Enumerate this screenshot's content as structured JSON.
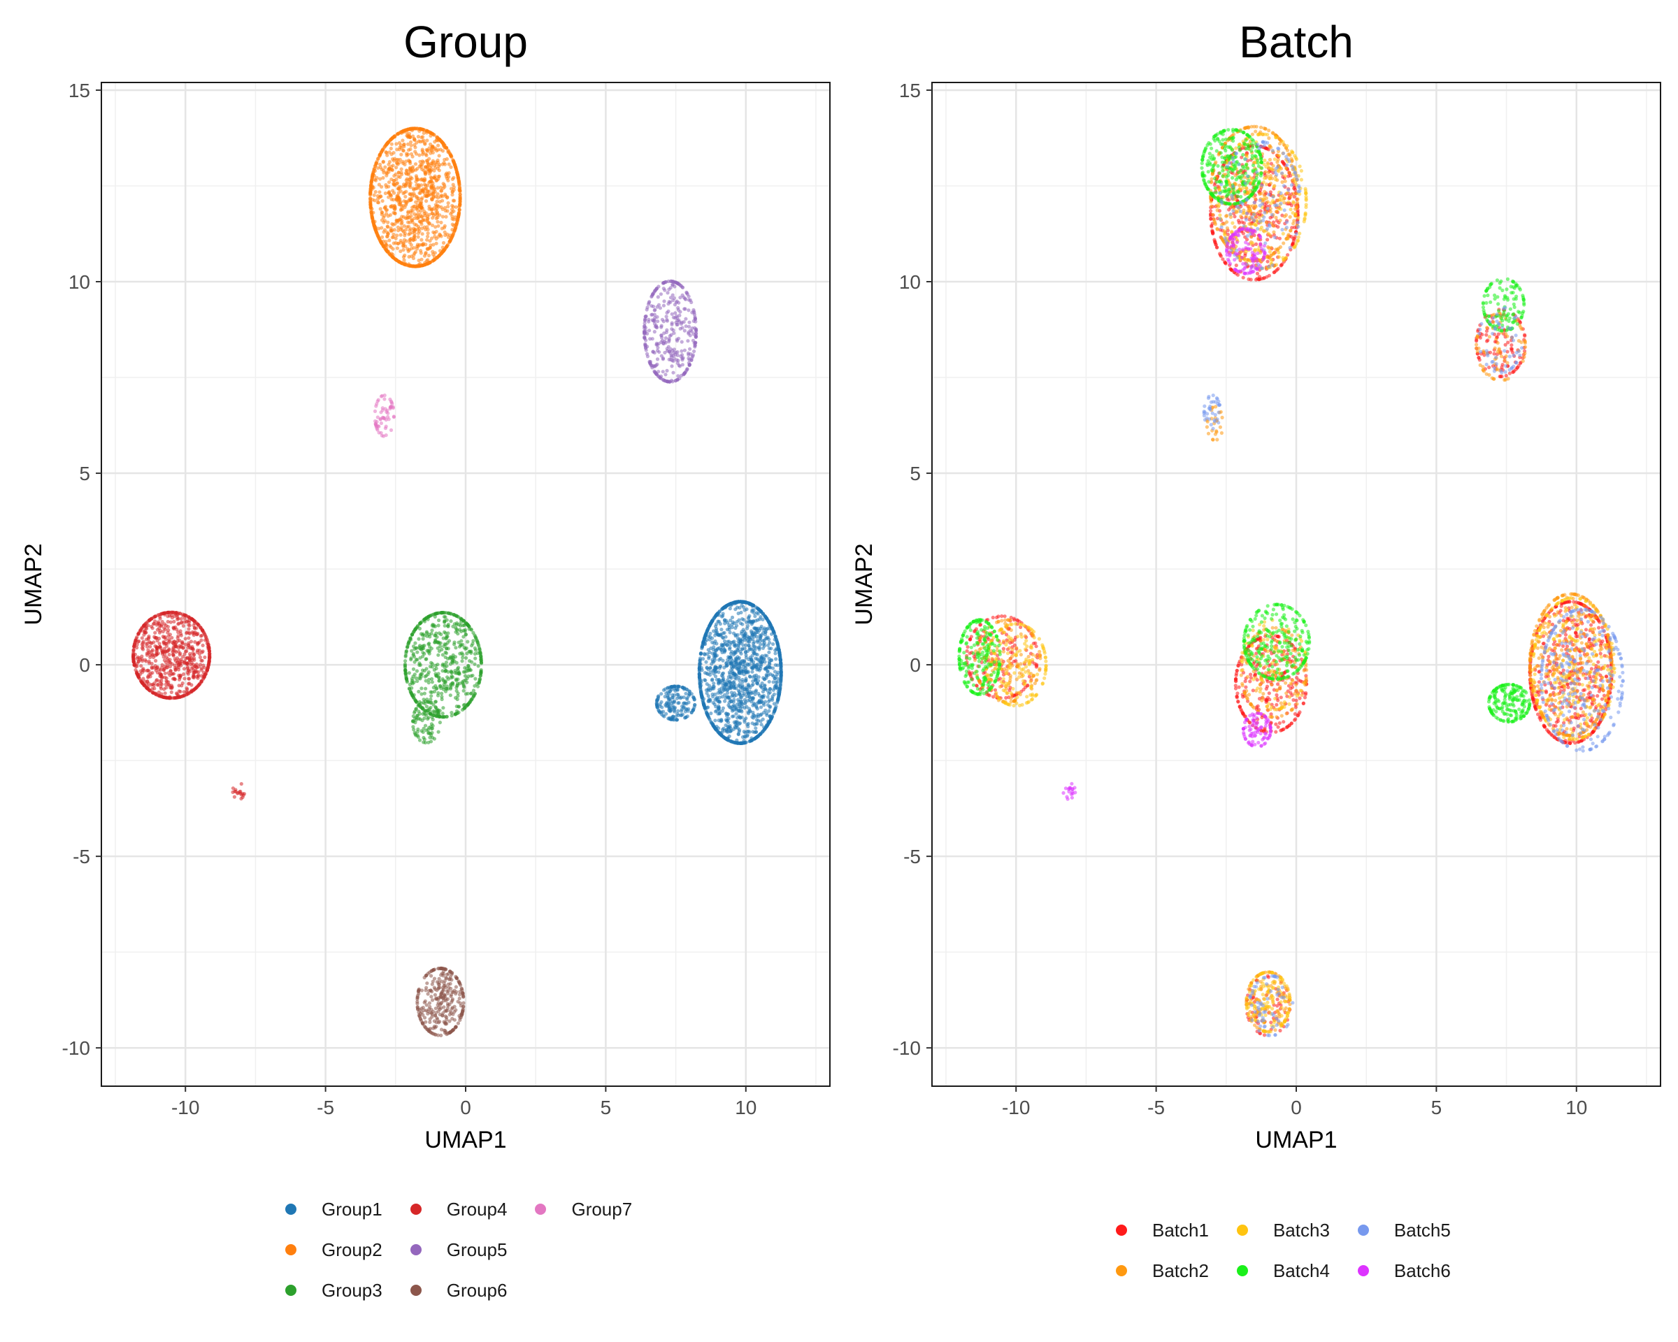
{
  "chart_data": [
    {
      "type": "scatter",
      "title": "Group",
      "xlabel": "UMAP1",
      "ylabel": "UMAP2",
      "xlim": [
        -13,
        13
      ],
      "ylim": [
        -11,
        15.2
      ],
      "xticks": [
        -10,
        -5,
        0,
        5,
        10
      ],
      "yticks": [
        15,
        10,
        5,
        0,
        -5,
        -10
      ],
      "grid": true,
      "legend_position": "bottom",
      "legend_rows": 3,
      "series": [
        {
          "name": "Group1",
          "color": "#1F77B4",
          "clusters": [
            {
              "cx": 9.8,
              "cy": -0.2,
              "sx": 1.5,
              "sy": 1.9,
              "n": 1600
            },
            {
              "cx": 7.5,
              "cy": -1.0,
              "sx": 0.7,
              "sy": 0.45,
              "n": 180
            }
          ]
        },
        {
          "name": "Group2",
          "color": "#FF7F0E",
          "clusters": [
            {
              "cx": -1.8,
              "cy": 12.2,
              "sx": 1.65,
              "sy": 1.85,
              "n": 1400
            }
          ]
        },
        {
          "name": "Group3",
          "color": "#2CA02C",
          "clusters": [
            {
              "cx": -0.8,
              "cy": 0.0,
              "sx": 1.4,
              "sy": 1.4,
              "n": 650
            },
            {
              "cx": -1.4,
              "cy": -1.5,
              "sx": 0.5,
              "sy": 0.55,
              "n": 90
            }
          ]
        },
        {
          "name": "Group4",
          "color": "#D62728",
          "clusters": [
            {
              "cx": -10.5,
              "cy": 0.25,
              "sx": 1.4,
              "sy": 1.15,
              "n": 850
            },
            {
              "cx": -8.1,
              "cy": -3.3,
              "sx": 0.22,
              "sy": 0.22,
              "n": 18
            }
          ]
        },
        {
          "name": "Group5",
          "color": "#9467BD",
          "clusters": [
            {
              "cx": 7.3,
              "cy": 8.7,
              "sx": 0.95,
              "sy": 1.35,
              "n": 380
            }
          ]
        },
        {
          "name": "Group6",
          "color": "#8C564B",
          "clusters": [
            {
              "cx": -0.9,
              "cy": -8.8,
              "sx": 0.85,
              "sy": 0.9,
              "n": 320
            }
          ]
        },
        {
          "name": "Group7",
          "color": "#E377C2",
          "clusters": [
            {
              "cx": -2.9,
              "cy": 6.5,
              "sx": 0.35,
              "sy": 0.55,
              "n": 60
            }
          ]
        }
      ]
    },
    {
      "type": "scatter",
      "title": "Batch",
      "xlabel": "UMAP1",
      "ylabel": "UMAP2",
      "xlim": [
        -13,
        13
      ],
      "ylim": [
        -11,
        15.2
      ],
      "xticks": [
        -10,
        -5,
        0,
        5,
        10
      ],
      "yticks": [
        15,
        10,
        5,
        0,
        -5,
        -10
      ],
      "grid": true,
      "legend_position": "bottom",
      "legend_rows": 2,
      "series": [
        {
          "name": "Batch1",
          "color": "#FF1A1A",
          "clusters": [
            {
              "cx": 9.8,
              "cy": -0.2,
              "sx": 1.5,
              "sy": 1.9,
              "n": 520
            },
            {
              "cx": -1.5,
              "cy": 11.8,
              "sx": 1.6,
              "sy": 1.8,
              "n": 420
            },
            {
              "cx": -0.9,
              "cy": -0.5,
              "sx": 1.3,
              "sy": 1.3,
              "n": 280
            },
            {
              "cx": -10.5,
              "cy": 0.2,
              "sx": 1.3,
              "sy": 1.1,
              "n": 170
            },
            {
              "cx": 7.3,
              "cy": 8.4,
              "sx": 0.9,
              "sy": 0.9,
              "n": 110
            },
            {
              "cx": -1.0,
              "cy": -8.9,
              "sx": 0.8,
              "sy": 0.8,
              "n": 60
            }
          ]
        },
        {
          "name": "Batch2",
          "color": "#FF9910",
          "clusters": [
            {
              "cx": 9.8,
              "cy": 0.0,
              "sx": 1.5,
              "sy": 1.9,
              "n": 380
            },
            {
              "cx": -1.5,
              "cy": 12.3,
              "sx": 1.6,
              "sy": 1.8,
              "n": 380
            },
            {
              "cx": -10.3,
              "cy": 0.1,
              "sx": 1.2,
              "sy": 1.1,
              "n": 140
            },
            {
              "cx": -0.8,
              "cy": -0.2,
              "sx": 1.2,
              "sy": 1.2,
              "n": 140
            },
            {
              "cx": 7.3,
              "cy": 8.3,
              "sx": 0.9,
              "sy": 0.9,
              "n": 70
            },
            {
              "cx": -1.0,
              "cy": -8.8,
              "sx": 0.8,
              "sy": 0.8,
              "n": 110
            },
            {
              "cx": -2.9,
              "cy": 6.3,
              "sx": 0.3,
              "sy": 0.45,
              "n": 25
            }
          ]
        },
        {
          "name": "Batch3",
          "color": "#FFC410",
          "clusters": [
            {
              "cx": 9.9,
              "cy": -0.1,
              "sx": 1.5,
              "sy": 1.9,
              "n": 240
            },
            {
              "cx": -1.2,
              "cy": 12.1,
              "sx": 1.6,
              "sy": 1.8,
              "n": 230
            },
            {
              "cx": -10.0,
              "cy": 0.0,
              "sx": 1.1,
              "sy": 1.1,
              "n": 160
            },
            {
              "cx": -1.0,
              "cy": -8.8,
              "sx": 0.8,
              "sy": 0.8,
              "n": 120
            },
            {
              "cx": -0.8,
              "cy": 0.0,
              "sx": 1.2,
              "sy": 1.2,
              "n": 70
            }
          ]
        },
        {
          "name": "Batch4",
          "color": "#1AF01A",
          "clusters": [
            {
              "cx": -2.3,
              "cy": 13.0,
              "sx": 1.1,
              "sy": 1.0,
              "n": 320
            },
            {
              "cx": -0.7,
              "cy": 0.6,
              "sx": 1.2,
              "sy": 1.0,
              "n": 260
            },
            {
              "cx": -11.3,
              "cy": 0.2,
              "sx": 0.75,
              "sy": 1.0,
              "n": 220
            },
            {
              "cx": 7.6,
              "cy": -1.0,
              "sx": 0.75,
              "sy": 0.5,
              "n": 190
            },
            {
              "cx": 7.4,
              "cy": 9.4,
              "sx": 0.75,
              "sy": 0.7,
              "n": 120
            }
          ]
        },
        {
          "name": "Batch5",
          "color": "#7799EE",
          "clusters": [
            {
              "cx": 10.2,
              "cy": -0.4,
              "sx": 1.5,
              "sy": 1.9,
              "n": 260
            },
            {
              "cx": -1.3,
              "cy": 12.0,
              "sx": 1.5,
              "sy": 1.7,
              "n": 120
            },
            {
              "cx": -0.9,
              "cy": -8.9,
              "sx": 0.8,
              "sy": 0.8,
              "n": 60
            },
            {
              "cx": -3.0,
              "cy": 6.6,
              "sx": 0.3,
              "sy": 0.45,
              "n": 35
            },
            {
              "cx": 7.3,
              "cy": 8.5,
              "sx": 0.8,
              "sy": 0.9,
              "n": 50
            }
          ]
        },
        {
          "name": "Batch6",
          "color": "#DD33FF",
          "clusters": [
            {
              "cx": -1.8,
              "cy": 10.8,
              "sx": 0.7,
              "sy": 0.6,
              "n": 120
            },
            {
              "cx": -1.4,
              "cy": -1.7,
              "sx": 0.5,
              "sy": 0.45,
              "n": 90
            },
            {
              "cx": -8.1,
              "cy": -3.3,
              "sx": 0.22,
              "sy": 0.22,
              "n": 18
            }
          ]
        }
      ]
    }
  ]
}
